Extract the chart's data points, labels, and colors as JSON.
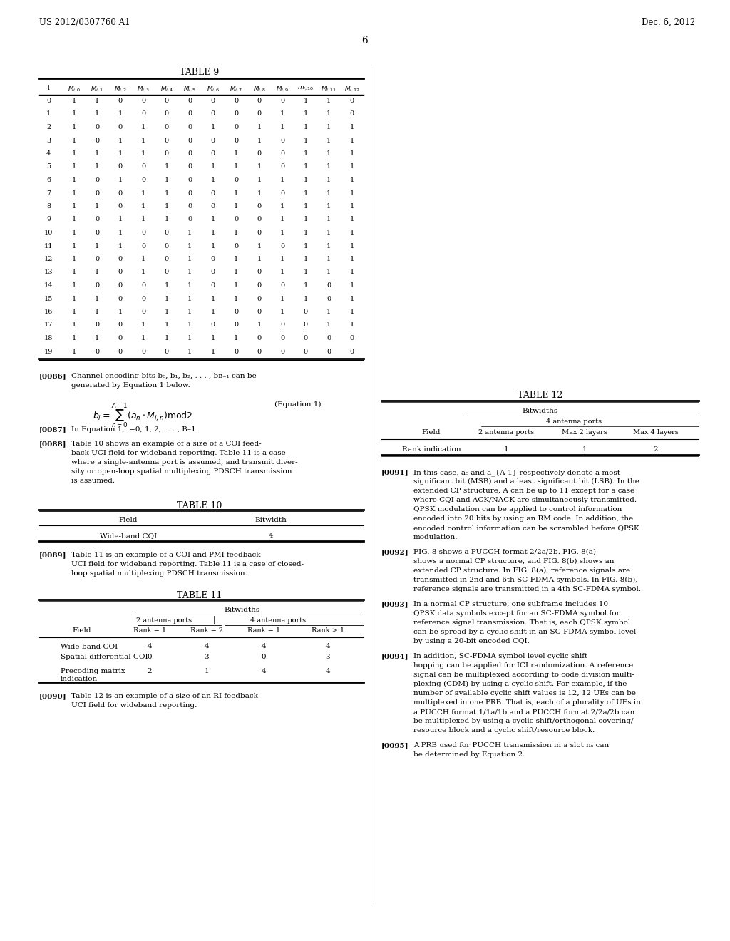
{
  "header_left": "US 2012/0307760 A1",
  "header_right": "Dec. 6, 2012",
  "page_number": "6",
  "table9_title": "TABLE 9",
  "table9_headers": [
    "i",
    "M_{i,0}",
    "M_{i,1}",
    "M_{i,2}",
    "M_{i,3}",
    "M_{i,4}",
    "M_{i,5}",
    "M_{i,6}",
    "M_{i,7}",
    "M_{i,8}",
    "M_{i,9}",
    "m_{i,10}",
    "M_{i,11}",
    "M_{i,12}"
  ],
  "table9_data": [
    [
      0,
      1,
      1,
      0,
      0,
      0,
      0,
      0,
      0,
      0,
      0,
      1,
      1,
      0
    ],
    [
      1,
      1,
      1,
      1,
      0,
      0,
      0,
      0,
      0,
      0,
      1,
      1,
      1,
      0
    ],
    [
      2,
      1,
      0,
      0,
      1,
      0,
      0,
      1,
      0,
      1,
      1,
      1,
      1,
      1
    ],
    [
      3,
      1,
      0,
      1,
      1,
      0,
      0,
      0,
      0,
      1,
      0,
      1,
      1,
      1
    ],
    [
      4,
      1,
      1,
      1,
      1,
      0,
      0,
      0,
      1,
      0,
      0,
      1,
      1,
      1
    ],
    [
      5,
      1,
      1,
      0,
      0,
      1,
      0,
      1,
      1,
      1,
      0,
      1,
      1,
      1
    ],
    [
      6,
      1,
      0,
      1,
      0,
      1,
      0,
      1,
      0,
      1,
      1,
      1,
      1,
      1
    ],
    [
      7,
      1,
      0,
      0,
      1,
      1,
      0,
      0,
      1,
      1,
      0,
      1,
      1,
      1
    ],
    [
      8,
      1,
      1,
      0,
      1,
      1,
      0,
      0,
      1,
      0,
      1,
      1,
      1,
      1
    ],
    [
      9,
      1,
      0,
      1,
      1,
      1,
      0,
      1,
      0,
      0,
      1,
      1,
      1,
      1
    ],
    [
      10,
      1,
      0,
      1,
      0,
      0,
      1,
      1,
      1,
      0,
      1,
      1,
      1,
      1
    ],
    [
      11,
      1,
      1,
      1,
      0,
      0,
      1,
      1,
      0,
      1,
      0,
      1,
      1,
      1
    ],
    [
      12,
      1,
      0,
      0,
      1,
      0,
      1,
      0,
      1,
      1,
      1,
      1,
      1,
      1
    ],
    [
      13,
      1,
      1,
      0,
      1,
      0,
      1,
      0,
      1,
      0,
      1,
      1,
      1,
      1
    ],
    [
      14,
      1,
      0,
      0,
      0,
      1,
      1,
      0,
      1,
      0,
      0,
      1,
      0,
      1
    ],
    [
      15,
      1,
      1,
      0,
      0,
      1,
      1,
      1,
      1,
      0,
      1,
      1,
      0,
      1
    ],
    [
      16,
      1,
      1,
      1,
      0,
      1,
      1,
      1,
      0,
      0,
      1,
      0,
      1,
      1
    ],
    [
      17,
      1,
      0,
      0,
      1,
      1,
      1,
      0,
      0,
      1,
      0,
      0,
      1,
      1
    ],
    [
      18,
      1,
      1,
      0,
      1,
      1,
      1,
      1,
      1,
      0,
      0,
      0,
      0,
      0
    ],
    [
      19,
      1,
      0,
      0,
      0,
      0,
      1,
      1,
      0,
      0,
      0,
      0,
      0,
      0
    ]
  ],
  "para86": "[0086]   Channel encoding bits b₀, b₁, b₂, . . . , bʙ₋₁ can be\ngenerated by Equation 1 below.",
  "equation1_label": "(Equation 1)",
  "para87": "[0087]   In Equation 1, i=0, 1, 2, . . . , B–1.",
  "para88": "[0088]   Table 10 shows an example of a size of a CQI feedback UCI field for wideband reporting. Table 11 is a case where a single-antenna port is assumed, and transmit diversity or open-loop spatial multiplexing PDSCH transmission is assumed.",
  "table10_title": "TABLE 10",
  "table10_headers": [
    "Field",
    "Bitwidth"
  ],
  "table10_data": [
    [
      "Wide-band CQI",
      "4"
    ]
  ],
  "para89": "[0089]   Table 11 is an example of a CQI and PMI feedback UCI field for wideband reporting. Table 11 is a case of closed-loop spatial multiplexing PDSCH transmission.",
  "table11_title": "TABLE 11",
  "table11_header1": "Bitwidths",
  "table11_header2a": "2 antenna ports",
  "table11_header2b": "4 antenna ports",
  "table11_subheaders": [
    "Field",
    "Rank = 1",
    "Rank = 2",
    "Rank = 1",
    "Rank > 1"
  ],
  "table11_data": [
    [
      "Wide-band CQI",
      "4",
      "4",
      "4",
      "4"
    ],
    [
      "Spatial differential CQI",
      "0",
      "3",
      "0",
      "3"
    ],
    [
      "Precoding matrix\nindication",
      "2",
      "1",
      "4",
      "4"
    ]
  ],
  "table12_title": "TABLE 12",
  "table12_header1": "Bitwidths",
  "table12_header2": "4 antenna ports",
  "table12_subheaders": [
    "Field",
    "2 antenna ports",
    "Max 2 layers",
    "Max 4 layers"
  ],
  "table12_data": [
    [
      "Rank indication",
      "1",
      "1",
      "2"
    ]
  ],
  "para90": "[0090]   Table 12 is an example of a size of an RI feedback UCI field for wideband reporting.",
  "para91": "[0091]   In this case, a₀ and a⨀₋₁ respectively denote a most significant bit (MSB) and a least significant bit (LSB). In the extended CP structure, A can be up to 11 except for a case where CQI and ACK/NACK are simultaneously transmitted. QPSK modulation can be applied to control information encoded into 20 bits by using an RM code. In addition, the encoded control information can be scrambled before QPSK modulation.",
  "para92": "[0092]   FIG. 8 shows a PUCCH format 2/2a/2b. FIG. 8(a) shows a normal CP structure, and FIG. 8(b) shows an extended CP structure. In FIG. 8(a), reference signals are transmitted in 2nd and 6th SC-FDMA symbols. In FIG. 8(b), reference signals are transmitted in a 4th SC-FDMA symbol.",
  "para93": "[0093]   In a normal CP structure, one subframe includes 10 QPSK data symbols except for an SC-FDMA symbol for reference signal transmission. That is, each QPSK symbol can be spread by a cyclic shift in an SC-FDMA symbol level by using a 20-bit encoded CQI.",
  "para94": "[0094]   In addition, SC-FDMA symbol level cyclic shift hopping can be applied for ICI randomization. A reference signal can be multiplexed according to code division multiplexing (CDM) by using a cyclic shift. For example, if the number of available cyclic shift values is 12, 12 UEs can be multiplexed in one PRB. That is, each of a plurality of UEs in a PUCCH format 1/1a/1b and a PUCCH format 2/2a/2b can be multiplexed by using a cyclic shift/orthogonal covering/resource block and a cyclic shift/resource block.",
  "para95": "[0095]   A PRB used for PUCCH transmission in a slot nₛ can be determined by Equation 2."
}
